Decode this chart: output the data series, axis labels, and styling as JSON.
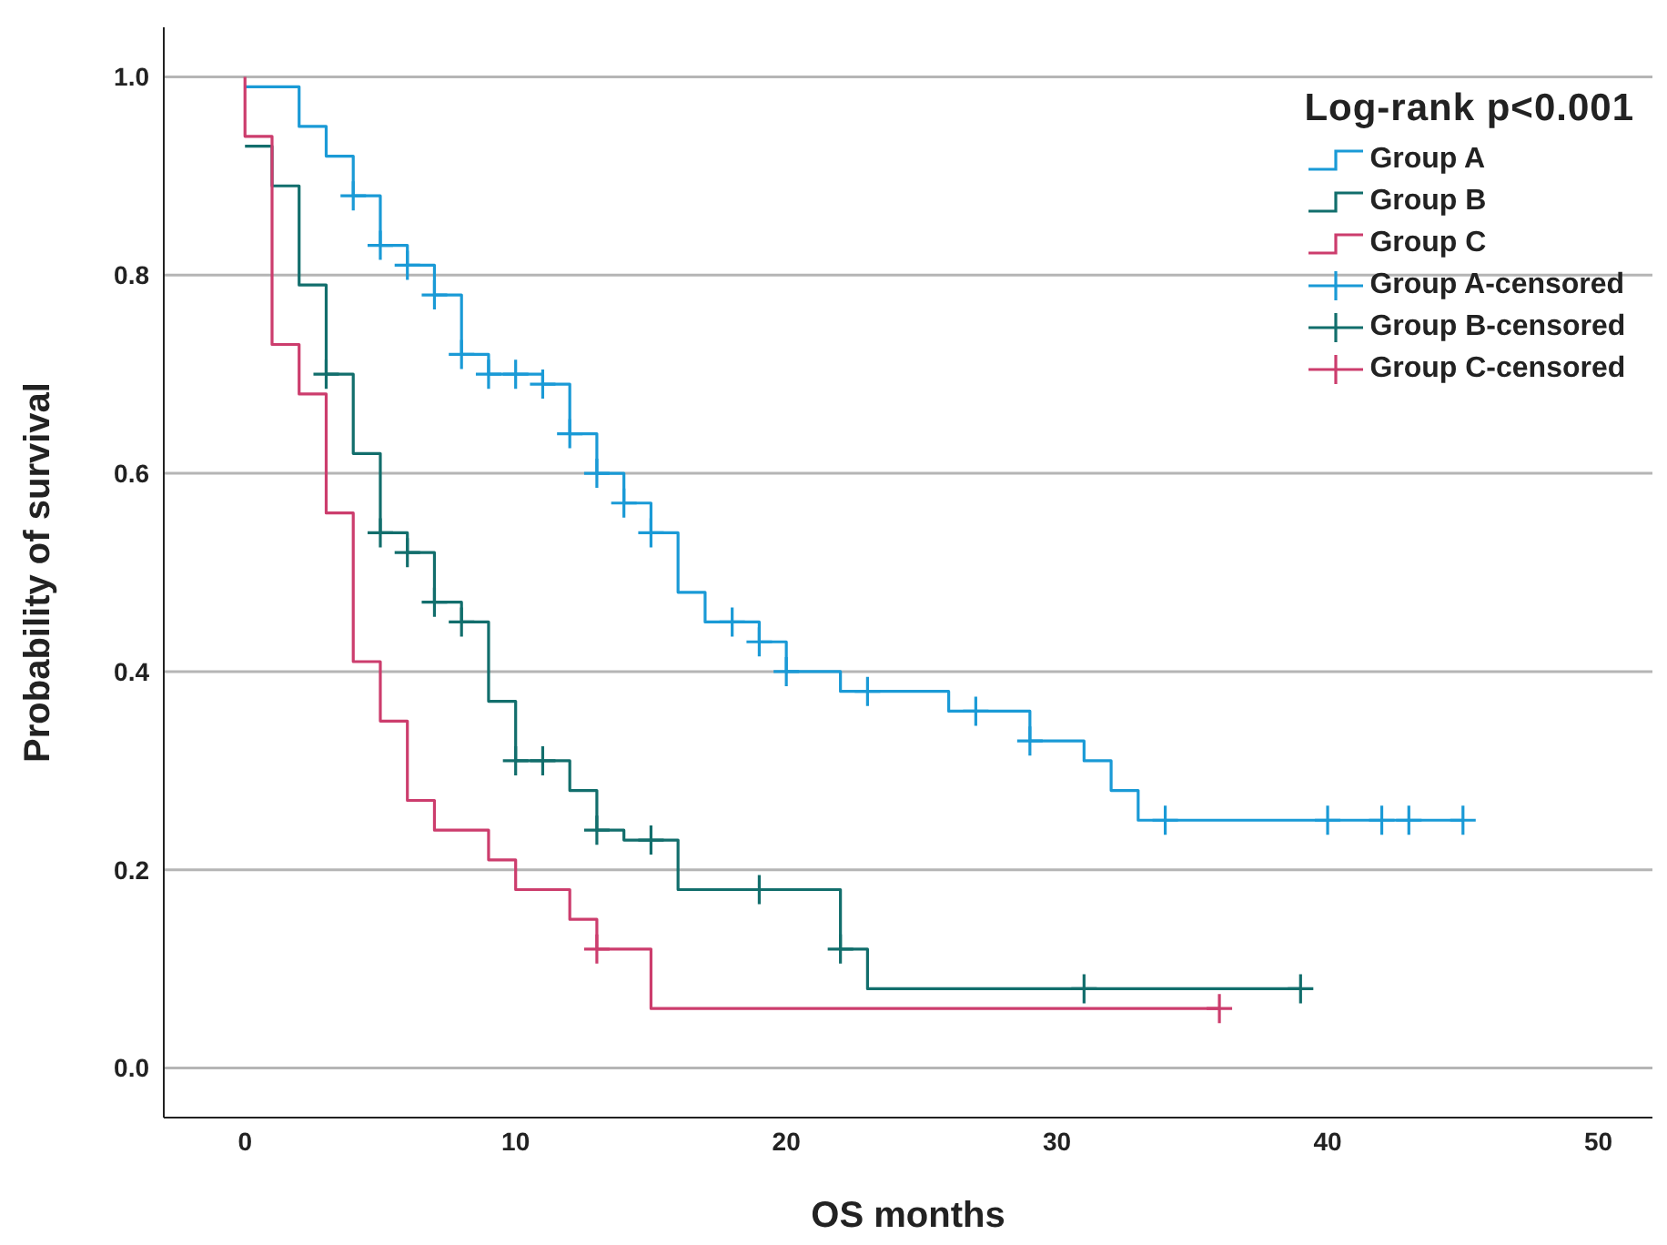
{
  "chart_data": {
    "type": "step",
    "xlabel": "OS months",
    "ylabel": "Probability of survival",
    "legend_title": "Log-rank p<0.001",
    "legend": "top right",
    "grid": "y",
    "line_style": "solid",
    "xlim": [
      -3,
      52
    ],
    "xticks": [
      0,
      10,
      20,
      30,
      40,
      50
    ],
    "ylim": [
      -0.05,
      1.05
    ],
    "yticks": [
      {
        "value": 0,
        "label": "0.0"
      },
      0.2,
      0.4,
      0.6,
      0.8,
      {
        "value": 1,
        "label": "1.0"
      }
    ],
    "series": [
      {
        "name": "Group A",
        "type": "step",
        "color": "#1a9ad6",
        "marker": "none",
        "x": [
          0,
          2,
          3,
          4,
          5,
          6,
          7,
          8,
          9,
          11,
          12,
          13,
          14,
          15,
          16,
          17,
          19,
          20,
          22,
          26,
          29,
          31,
          32,
          33,
          45
        ],
        "values": [
          0.99,
          0.95,
          0.92,
          0.88,
          0.83,
          0.81,
          0.78,
          0.72,
          0.7,
          0.69,
          0.64,
          0.6,
          0.57,
          0.54,
          0.48,
          0.45,
          0.43,
          0.4,
          0.38,
          0.36,
          0.33,
          0.31,
          0.28,
          0.25,
          0.25
        ]
      },
      {
        "name": "Group B",
        "type": "step",
        "color": "#126e6c",
        "marker": "none",
        "x": [
          0,
          1,
          2,
          3,
          4,
          5,
          6,
          7,
          8,
          9,
          10,
          12,
          13,
          14,
          16,
          22,
          23,
          39
        ],
        "values": [
          0.93,
          0.89,
          0.79,
          0.7,
          0.62,
          0.54,
          0.52,
          0.47,
          0.45,
          0.37,
          0.31,
          0.28,
          0.24,
          0.23,
          0.18,
          0.12,
          0.08,
          0.08
        ]
      },
      {
        "name": "Group C",
        "type": "step",
        "color": "#cc3d6d",
        "marker": "none",
        "x": [
          0,
          0,
          1,
          2,
          3,
          4,
          5,
          6,
          7,
          9,
          10,
          12,
          13,
          15,
          36
        ],
        "values": [
          1.0,
          0.94,
          0.73,
          0.68,
          0.56,
          0.41,
          0.35,
          0.27,
          0.24,
          0.21,
          0.18,
          0.15,
          0.12,
          0.06,
          0.06
        ]
      },
      {
        "name": "Group A-censored",
        "type": "scatter",
        "color": "#1a9ad6",
        "marker": "cross",
        "x": [
          4,
          5,
          6,
          7,
          8,
          9,
          10,
          11,
          12,
          13,
          14,
          15,
          18,
          19,
          20,
          23,
          27,
          29,
          34,
          40,
          42,
          43,
          45
        ],
        "values": [
          0.88,
          0.83,
          0.81,
          0.78,
          0.72,
          0.7,
          0.7,
          0.69,
          0.64,
          0.6,
          0.57,
          0.54,
          0.45,
          0.43,
          0.4,
          0.38,
          0.36,
          0.33,
          0.25,
          0.25,
          0.25,
          0.25,
          0.25
        ]
      },
      {
        "name": "Group B-censored",
        "type": "scatter",
        "color": "#126e6c",
        "marker": "cross",
        "x": [
          3,
          5,
          6,
          7,
          8,
          10,
          11,
          13,
          15,
          19,
          22,
          31,
          39
        ],
        "values": [
          0.7,
          0.54,
          0.52,
          0.47,
          0.45,
          0.31,
          0.31,
          0.24,
          0.23,
          0.18,
          0.12,
          0.08,
          0.08
        ]
      },
      {
        "name": "Group C-censored",
        "type": "scatter",
        "color": "#cc3d6d",
        "marker": "cross",
        "x": [
          13,
          36
        ],
        "values": [
          0.12,
          0.06
        ]
      }
    ]
  }
}
